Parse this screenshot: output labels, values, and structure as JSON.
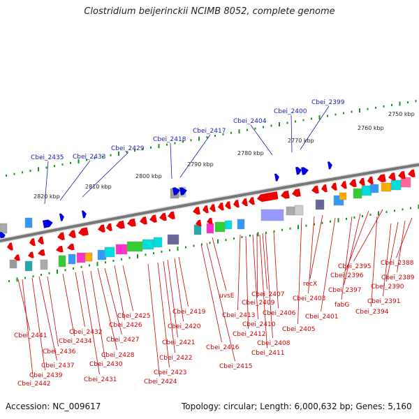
{
  "title": "Clostridium beijerinckii NCIMB 8052, complete genome",
  "footer": {
    "accession": "Accession: NC_009617",
    "info": "Topology: circular; Length: 6,000,632 bp; Genes: 5,160"
  },
  "colors": {
    "plus_strand": "#0000dd",
    "minus_strand": "#ee0000",
    "label_plus": "#1a1ab4",
    "label_minus": "#cc0000",
    "tick": "#119911",
    "backbone": "#777777"
  },
  "kbp_marks": [
    {
      "text": "2750 kbp"
    },
    {
      "text": "2760 kbp"
    },
    {
      "text": "2770 kbp"
    },
    {
      "text": "2780 kbp"
    },
    {
      "text": "2790 kbp"
    },
    {
      "text": "2800 kbp"
    },
    {
      "text": "2810 kbp"
    },
    {
      "text": "2820 kbp"
    }
  ],
  "plus_labels": [
    {
      "text": "Cbei_2399"
    },
    {
      "text": "Cbei_2400"
    },
    {
      "text": "Cbei_2404"
    },
    {
      "text": "Cbei_2417"
    },
    {
      "text": "Cbei_2418"
    },
    {
      "text": "Cbei_2429"
    },
    {
      "text": "Cbei_2433"
    },
    {
      "text": "Cbei_2435"
    }
  ],
  "minus_labels": [
    {
      "text": "Cbei_2388"
    },
    {
      "text": "Cbei_2389"
    },
    {
      "text": "Cbei_2390"
    },
    {
      "text": "Cbei_2395"
    },
    {
      "text": "Cbei_2391"
    },
    {
      "text": "Cbei_2396"
    },
    {
      "text": "Cbei_2397"
    },
    {
      "text": "fabG"
    },
    {
      "text": "Cbei_2394"
    },
    {
      "text": "recX"
    },
    {
      "text": "Cbei_2403"
    },
    {
      "text": "Cbei_2401"
    },
    {
      "text": "Cbei_2405"
    },
    {
      "text": "uvsE"
    },
    {
      "text": "Cbei_2407"
    },
    {
      "text": "Cbei_2409"
    },
    {
      "text": "Cbei_2406"
    },
    {
      "text": "Cbei_2413"
    },
    {
      "text": "Cbei_2410"
    },
    {
      "text": "Cbei_2412"
    },
    {
      "text": "Cbei_2408"
    },
    {
      "text": "Cbei_2411"
    },
    {
      "text": "Cbei_2416"
    },
    {
      "text": "Cbei_2415"
    },
    {
      "text": "Cbei_2419"
    },
    {
      "text": "Cbei_2420"
    },
    {
      "text": "Cbei_2421"
    },
    {
      "text": "Cbei_2422"
    },
    {
      "text": "Cbei_2423"
    },
    {
      "text": "Cbei_2424"
    },
    {
      "text": "Cbei_2425"
    },
    {
      "text": "Cbei_2426"
    },
    {
      "text": "Cbei_2427"
    },
    {
      "text": "Cbei_2428"
    },
    {
      "text": "Cbei_2430"
    },
    {
      "text": "Cbei_2431"
    },
    {
      "text": "Cbei_2432"
    },
    {
      "text": "Cbei_2434"
    },
    {
      "text": "Cbei_2436"
    },
    {
      "text": "Cbei_2437"
    },
    {
      "text": "Cbei_2439"
    },
    {
      "text": "Cbei_2441"
    },
    {
      "text": "Cbei_2442"
    }
  ]
}
